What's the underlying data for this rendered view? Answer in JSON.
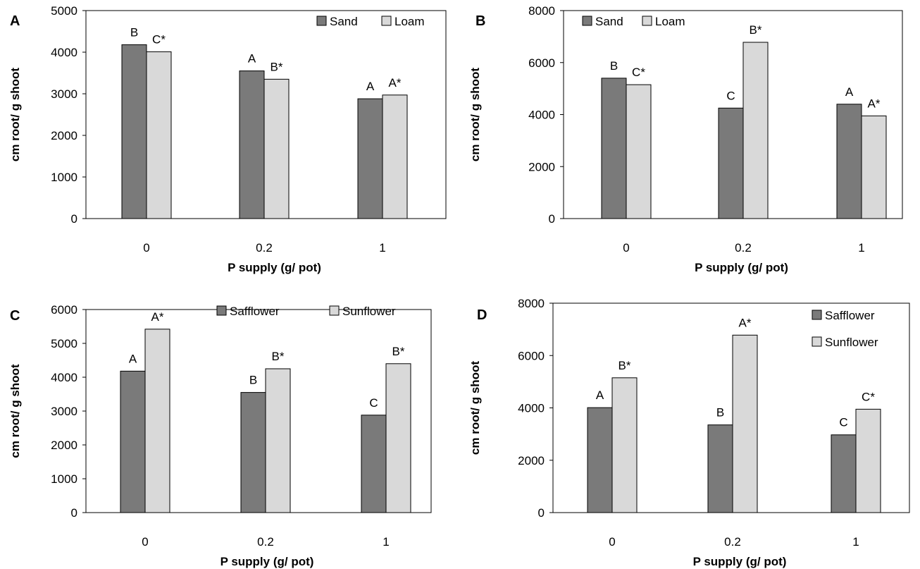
{
  "colors": {
    "dark": "#7a7a7a",
    "light": "#d9d9d9",
    "outline": "#000000"
  },
  "chart_data": [
    {
      "panel": "A",
      "type": "bar",
      "categories": [
        "0",
        "0.2",
        "1"
      ],
      "series": [
        {
          "name": "Sand",
          "values": [
            4180,
            3550,
            2880
          ],
          "labels": [
            "B",
            "A",
            "A"
          ]
        },
        {
          "name": "Loam",
          "values": [
            4010,
            3350,
            2970
          ],
          "labels": [
            "C*",
            "B*",
            "A*"
          ]
        }
      ],
      "xlabel": "P supply (g/ pot)",
      "ylabel": "cm root/ g shoot",
      "ylim": [
        0,
        5000
      ],
      "yticks": [
        0,
        1000,
        2000,
        3000,
        4000,
        5000
      ],
      "legend": "top-right, horizontal"
    },
    {
      "panel": "B",
      "type": "bar",
      "categories": [
        "0",
        "0.2",
        "1"
      ],
      "series": [
        {
          "name": "Sand",
          "values": [
            5400,
            4250,
            4400
          ],
          "labels": [
            "B",
            "C",
            "A"
          ]
        },
        {
          "name": "Loam",
          "values": [
            5150,
            6780,
            3950
          ],
          "labels": [
            "C*",
            "B*",
            "A*"
          ]
        }
      ],
      "xlabel": "P supply (g/ pot)",
      "ylabel": "cm root/ g shoot",
      "ylim": [
        0,
        8000
      ],
      "yticks": [
        0,
        2000,
        4000,
        6000,
        8000
      ],
      "legend": "top-left, horizontal"
    },
    {
      "panel": "C",
      "type": "bar",
      "categories": [
        "0",
        "0.2",
        "1"
      ],
      "series": [
        {
          "name": "Safflower",
          "values": [
            4180,
            3550,
            2880
          ],
          "labels": [
            "A",
            "B",
            "C"
          ]
        },
        {
          "name": "Sunflower",
          "values": [
            5420,
            4250,
            4400
          ],
          "labels": [
            "A*",
            "B*",
            "B*"
          ]
        }
      ],
      "xlabel": "P supply (g/ pot)",
      "ylabel": "cm root/ g shoot",
      "ylim": [
        0,
        6000
      ],
      "yticks": [
        0,
        1000,
        2000,
        3000,
        4000,
        5000,
        6000
      ],
      "legend": "top-right, horizontal"
    },
    {
      "panel": "D",
      "type": "bar",
      "categories": [
        "0",
        "0.2",
        "1"
      ],
      "series": [
        {
          "name": "Safflower",
          "values": [
            4010,
            3350,
            2970
          ],
          "labels": [
            "A",
            "B",
            "C"
          ]
        },
        {
          "name": "Sunflower",
          "values": [
            5150,
            6780,
            3950
          ],
          "labels": [
            "B*",
            "A*",
            "C*"
          ]
        }
      ],
      "xlabel": "P supply (g/ pot)",
      "ylabel": "cm root/ g shoot",
      "ylim": [
        0,
        8000
      ],
      "yticks": [
        0,
        2000,
        4000,
        6000,
        8000
      ],
      "legend": "top-right, vertical"
    }
  ]
}
